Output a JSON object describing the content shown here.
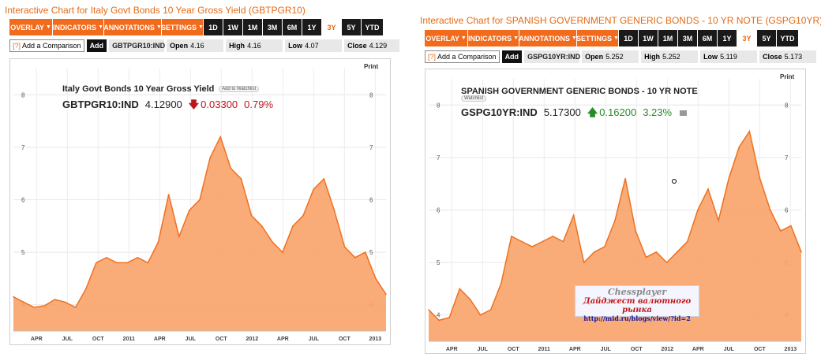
{
  "charts": [
    {
      "title": "Interactive Chart for Italy Govt Bonds 10 Year Gross Yield (GBTPGR10)",
      "menus": [
        "OVERLAY",
        "INDICATORS",
        "ANNOTATIONS",
        "SETTINGS"
      ],
      "ranges": [
        "1D",
        "1W",
        "1M",
        "3M",
        "6M",
        "1Y",
        "3Y",
        "5Y",
        "YTD"
      ],
      "active_range": "3Y",
      "compare_label": "Add a Comparison",
      "compare_q": "[?]",
      "add_label": "Add",
      "ticker": "GBTPGR10:IND",
      "open": {
        "label": "Open",
        "value": "4.16"
      },
      "high": {
        "label": "High",
        "value": "4.16"
      },
      "low": {
        "label": "Low",
        "value": "4.07"
      },
      "close": {
        "label": "Close",
        "value": "4.129"
      },
      "print_label": "Print",
      "header_name": "Italy Govt Bonds 10 Year Gross Yield",
      "watchlist_label": "Add to Watchlist",
      "price": "4.12900",
      "change": "0.03300",
      "change_pct": "0.79%",
      "direction": "down"
    },
    {
      "title": "Interactive Chart for SPANISH GOVERNMENT GENERIC BONDS - 10 YR NOTE (GSPG10YR)",
      "menus": [
        "OVERLAY",
        "INDICATORS",
        "ANNOTATIONS",
        "SETTINGS"
      ],
      "ranges": [
        "1D",
        "1W",
        "1M",
        "3M",
        "6M",
        "1Y",
        "3Y",
        "5Y",
        "YTD"
      ],
      "active_range": "3Y",
      "compare_label": "Add a Comparison",
      "compare_q": "[?]",
      "add_label": "Add",
      "ticker": "GSPG10YR:IND",
      "open": {
        "label": "Open",
        "value": "5.252"
      },
      "high": {
        "label": "High",
        "value": "5.252"
      },
      "low": {
        "label": "Low",
        "value": "5.119"
      },
      "close": {
        "label": "Close",
        "value": "5.173"
      },
      "print_label": "Print",
      "header_name": "SPANISH GOVERNMENT GENERIC BONDS - 10 YR NOTE",
      "watchlist_label": "Watchlist",
      "price": "5.17300",
      "change": "0.16200",
      "change_pct": "3.23%",
      "direction": "up"
    }
  ],
  "watermark": {
    "line1": "Chessplayer",
    "line2": "Дайджест валютного рынка",
    "line3": "http://mid.ru/blogs/view/?id=2"
  },
  "colors": {
    "accent": "#f26b1d",
    "area": "#f8a56c",
    "line": "#f07020",
    "down": "#c0141b",
    "up": "#2a8a2a"
  },
  "chart_data": [
    {
      "type": "area",
      "x_ticks": [
        "APR",
        "JUL",
        "OCT",
        "2011",
        "APR",
        "JUL",
        "OCT",
        "2012",
        "APR",
        "JUL",
        "OCT",
        "2013"
      ],
      "ylim": [
        3.5,
        8.5
      ],
      "y_ticks": [
        4,
        5,
        6,
        7,
        8
      ],
      "grid": true,
      "points": [
        [
          0,
          4.15
        ],
        [
          1,
          4.05
        ],
        [
          2,
          3.95
        ],
        [
          3,
          3.98
        ],
        [
          4,
          4.1
        ],
        [
          5,
          4.05
        ],
        [
          6,
          3.95
        ],
        [
          7,
          4.3
        ],
        [
          8,
          4.8
        ],
        [
          9,
          4.9
        ],
        [
          10,
          4.8
        ],
        [
          11,
          4.8
        ],
        [
          12,
          4.9
        ],
        [
          13,
          4.8
        ],
        [
          14,
          5.2
        ],
        [
          15,
          6.1
        ],
        [
          16,
          5.3
        ],
        [
          17,
          5.8
        ],
        [
          18,
          6.0
        ],
        [
          19,
          6.8
        ],
        [
          20,
          7.2
        ],
        [
          21,
          6.6
        ],
        [
          22,
          6.4
        ],
        [
          23,
          5.7
        ],
        [
          24,
          5.5
        ],
        [
          25,
          5.2
        ],
        [
          26,
          5.0
        ],
        [
          27,
          5.5
        ],
        [
          28,
          5.7
        ],
        [
          29,
          6.2
        ],
        [
          30,
          6.4
        ],
        [
          31,
          5.8
        ],
        [
          32,
          5.1
        ],
        [
          33,
          4.9
        ],
        [
          34,
          5.0
        ],
        [
          35,
          4.5
        ],
        [
          36,
          4.2
        ]
      ]
    },
    {
      "type": "area",
      "x_ticks": [
        "APR",
        "JUL",
        "OCT",
        "2011",
        "APR",
        "JUL",
        "OCT",
        "2012",
        "APR",
        "JUL",
        "OCT",
        "2013"
      ],
      "ylim": [
        3.5,
        8.5
      ],
      "y_ticks": [
        4,
        5,
        6,
        7,
        8
      ],
      "grid": true,
      "points": [
        [
          0,
          4.1
        ],
        [
          1,
          3.9
        ],
        [
          2,
          3.95
        ],
        [
          3,
          4.5
        ],
        [
          4,
          4.3
        ],
        [
          5,
          4.0
        ],
        [
          6,
          4.1
        ],
        [
          7,
          4.6
        ],
        [
          8,
          5.5
        ],
        [
          9,
          5.4
        ],
        [
          10,
          5.3
        ],
        [
          11,
          5.4
        ],
        [
          12,
          5.5
        ],
        [
          13,
          5.4
        ],
        [
          14,
          5.9
        ],
        [
          15,
          5.0
        ],
        [
          16,
          5.2
        ],
        [
          17,
          5.3
        ],
        [
          18,
          5.8
        ],
        [
          19,
          6.6
        ],
        [
          20,
          5.6
        ],
        [
          21,
          5.1
        ],
        [
          22,
          5.2
        ],
        [
          23,
          5.0
        ],
        [
          24,
          5.2
        ],
        [
          25,
          5.4
        ],
        [
          26,
          6.0
        ],
        [
          27,
          6.4
        ],
        [
          28,
          5.8
        ],
        [
          29,
          6.6
        ],
        [
          30,
          7.2
        ],
        [
          31,
          7.5
        ],
        [
          32,
          6.6
        ],
        [
          33,
          6.0
        ],
        [
          34,
          5.6
        ],
        [
          35,
          5.7
        ],
        [
          36,
          5.2
        ]
      ]
    }
  ]
}
